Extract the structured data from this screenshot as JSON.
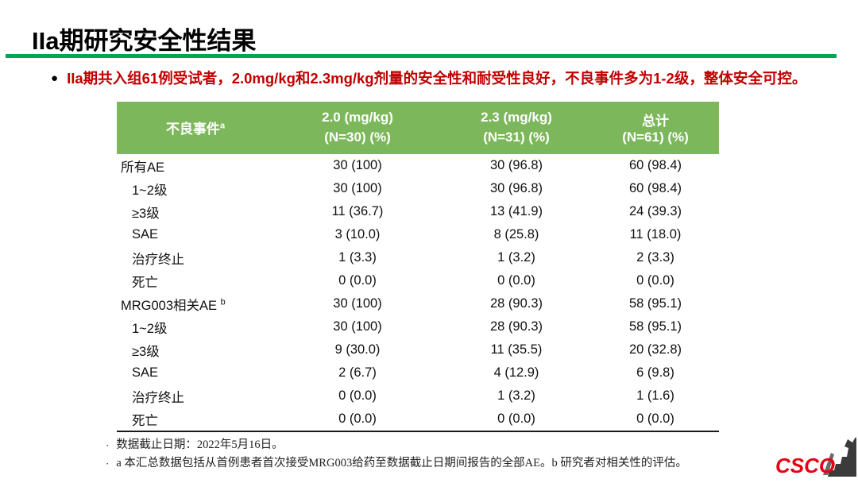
{
  "slide": {
    "title": "IIa期研究安全性结果",
    "bullet_marker": "●",
    "bullet": "IIa期共入组61例受试者，2.0mg/kg和2.3mg/kg剂量的安全性和耐受性良好，不良事件多为1-2级，整体安全可控。",
    "colors": {
      "divider_green": "#00A651",
      "header_green": "#7CB75B",
      "bullet_red": "#C00000",
      "csco_red": "#E60012"
    }
  },
  "table": {
    "header": {
      "col1": "不良事件",
      "col1_sup": "a",
      "col2_line1": "2.0 (mg/kg)",
      "col2_line2": "(N=30)  (%)",
      "col3_line1": "2.3 (mg/kg)",
      "col3_line2": "(N=31)  (%)",
      "col4_line1": "总计",
      "col4_line2": "(N=61)  (%)"
    },
    "rows": [
      {
        "label": "所有AE",
        "sup": "",
        "indent": false,
        "values": [
          "30 (100)",
          "30 (96.8)",
          "60 (98.4)"
        ]
      },
      {
        "label": "1~2级",
        "sup": "",
        "indent": true,
        "values": [
          "30 (100)",
          "30 (96.8)",
          "60 (98.4)"
        ]
      },
      {
        "label": "≥3级",
        "sup": "",
        "indent": true,
        "values": [
          "11 (36.7)",
          "13 (41.9)",
          "24 (39.3)"
        ]
      },
      {
        "label": "SAE",
        "sup": "",
        "indent": true,
        "values": [
          "3 (10.0)",
          "8 (25.8)",
          "11 (18.0)"
        ]
      },
      {
        "label": "治疗终止",
        "sup": "",
        "indent": true,
        "values": [
          "1 (3.3)",
          "1 (3.2)",
          "2 (3.3)"
        ]
      },
      {
        "label": "死亡",
        "sup": "",
        "indent": true,
        "values": [
          "0 (0.0)",
          "0 (0.0)",
          "0 (0.0)"
        ]
      },
      {
        "label": "MRG003相关AE ",
        "sup": "b",
        "indent": false,
        "values": [
          "30 (100)",
          "28 (90.3)",
          "58 (95.1)"
        ]
      },
      {
        "label": "1~2级",
        "sup": "",
        "indent": true,
        "values": [
          "30 (100)",
          "28 (90.3)",
          "58 (95.1)"
        ]
      },
      {
        "label": "≥3级",
        "sup": "",
        "indent": true,
        "values": [
          "9 (30.0)",
          "11 (35.5)",
          "20 (32.8)"
        ]
      },
      {
        "label": "SAE",
        "sup": "",
        "indent": true,
        "values": [
          "2 (6.7)",
          "4 (12.9)",
          "6 (9.8)"
        ]
      },
      {
        "label": "治疗终止",
        "sup": "",
        "indent": true,
        "values": [
          "0 (0.0)",
          "1 (3.2)",
          "1 (1.6)"
        ]
      },
      {
        "label": "死亡",
        "sup": "",
        "indent": true,
        "values": [
          "0 (0.0)",
          "0 (0.0)",
          "0 (0.0)"
        ]
      }
    ]
  },
  "footnotes": {
    "marker": "·",
    "items": [
      "数据截止日期：2022年5月16日。",
      "a 本汇总数据包括从首例患者首次接受MRG003给药至数据截止日期间报告的全部AE。b 研究者对相关性的评估。"
    ]
  },
  "logo": {
    "text": "CSCO"
  },
  "chart_data": {
    "type": "table",
    "title": "IIa期研究安全性结果",
    "columns": [
      "不良事件 a",
      "2.0 (mg/kg) (N=30) (%)",
      "2.3 (mg/kg) (N=31) (%)",
      "总计 (N=61) (%)"
    ],
    "rows": [
      [
        "所有AE",
        "30 (100)",
        "30 (96.8)",
        "60 (98.4)"
      ],
      [
        "1~2级",
        "30 (100)",
        "30 (96.8)",
        "60 (98.4)"
      ],
      [
        "≥3级",
        "11 (36.7)",
        "13 (41.9)",
        "24 (39.3)"
      ],
      [
        "SAE",
        "3 (10.0)",
        "8 (25.8)",
        "11 (18.0)"
      ],
      [
        "治疗终止",
        "1 (3.3)",
        "1 (3.2)",
        "2 (3.3)"
      ],
      [
        "死亡",
        "0 (0.0)",
        "0 (0.0)",
        "0 (0.0)"
      ],
      [
        "MRG003相关AE b",
        "30 (100)",
        "28 (90.3)",
        "58 (95.1)"
      ],
      [
        "1~2级",
        "30 (100)",
        "28 (90.3)",
        "58 (95.1)"
      ],
      [
        "≥3级",
        "9 (30.0)",
        "11 (35.5)",
        "20 (32.8)"
      ],
      [
        "SAE",
        "2 (6.7)",
        "4 (12.9)",
        "6 (9.8)"
      ],
      [
        "治疗终止",
        "0 (0.0)",
        "1 (3.2)",
        "1 (1.6)"
      ],
      [
        "死亡",
        "0 (0.0)",
        "0 (0.0)",
        "0 (0.0)"
      ]
    ]
  }
}
